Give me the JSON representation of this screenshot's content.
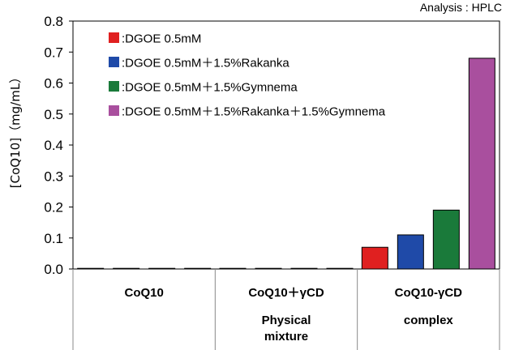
{
  "chart_data": {
    "type": "bar",
    "note": "Analysis : HPLC",
    "ylabel": "[CoQ10]（mg/mL）",
    "ylim": [
      0,
      0.8
    ],
    "yticks": [
      "0.0",
      "0.1",
      "0.2",
      "0.3",
      "0.4",
      "0.5",
      "0.6",
      "0.7",
      "0.8"
    ],
    "grid": false,
    "legend_position": "top-left",
    "groups": [
      {
        "lines": [
          "CoQ10"
        ]
      },
      {
        "lines": [
          "CoQ10＋γCD",
          "Physical",
          "mixture"
        ]
      },
      {
        "lines": [
          "CoQ10-γCD",
          "complex"
        ]
      }
    ],
    "series": [
      {
        "name": ":DGOE 0.5mM",
        "color": "#e02020",
        "values": [
          0,
          0,
          0.07
        ]
      },
      {
        "name": ":DGOE 0.5mM＋1.5%Rakanka",
        "color": "#1f4aa8",
        "values": [
          0,
          0,
          0.11
        ]
      },
      {
        "name": ":DGOE 0.5mM＋1.5%Gymnema",
        "color": "#1a7a3a",
        "values": [
          0,
          0,
          0.19
        ]
      },
      {
        "name": ":DGOE 0.5mM＋1.5%Rakanka＋1.5%Gymnema",
        "color": "#a94f9e",
        "values": [
          0,
          0,
          0.68
        ]
      }
    ]
  }
}
